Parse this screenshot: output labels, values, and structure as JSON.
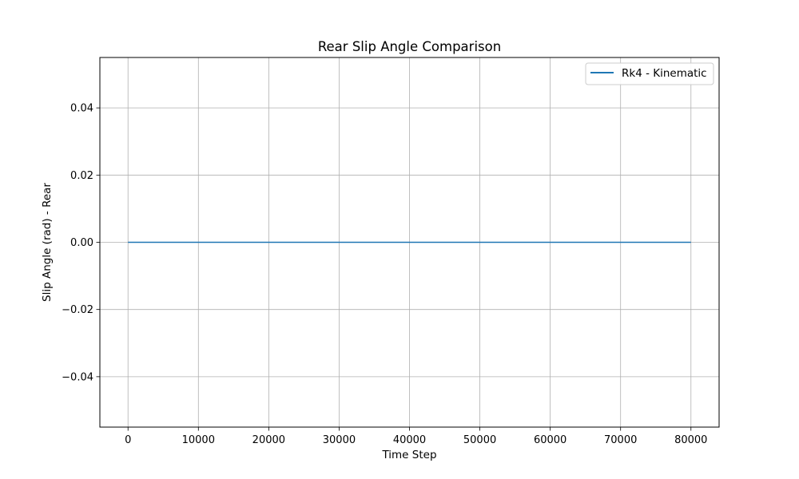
{
  "chart_data": {
    "type": "line",
    "title": "Rear Slip Angle Comparison",
    "xlabel": "Time Step",
    "ylabel": "Slip Angle (rad) - Rear",
    "xlim": [
      -4000,
      84000
    ],
    "ylim": [
      -0.055,
      0.055
    ],
    "xticks": [
      0,
      10000,
      20000,
      30000,
      40000,
      50000,
      60000,
      70000,
      80000
    ],
    "xtick_labels": [
      "0",
      "10000",
      "20000",
      "30000",
      "40000",
      "50000",
      "60000",
      "70000",
      "80000"
    ],
    "yticks": [
      -0.04,
      -0.02,
      0.0,
      0.02,
      0.04
    ],
    "ytick_labels": [
      "−0.04",
      "−0.02",
      "0.00",
      "0.02",
      "0.04"
    ],
    "grid": true,
    "legend_position": "top-right",
    "series": [
      {
        "name": "Rk4 - Kinematic",
        "color": "#1f77b4",
        "x": [
          0,
          80000
        ],
        "y": [
          0.0,
          0.0
        ]
      }
    ]
  }
}
